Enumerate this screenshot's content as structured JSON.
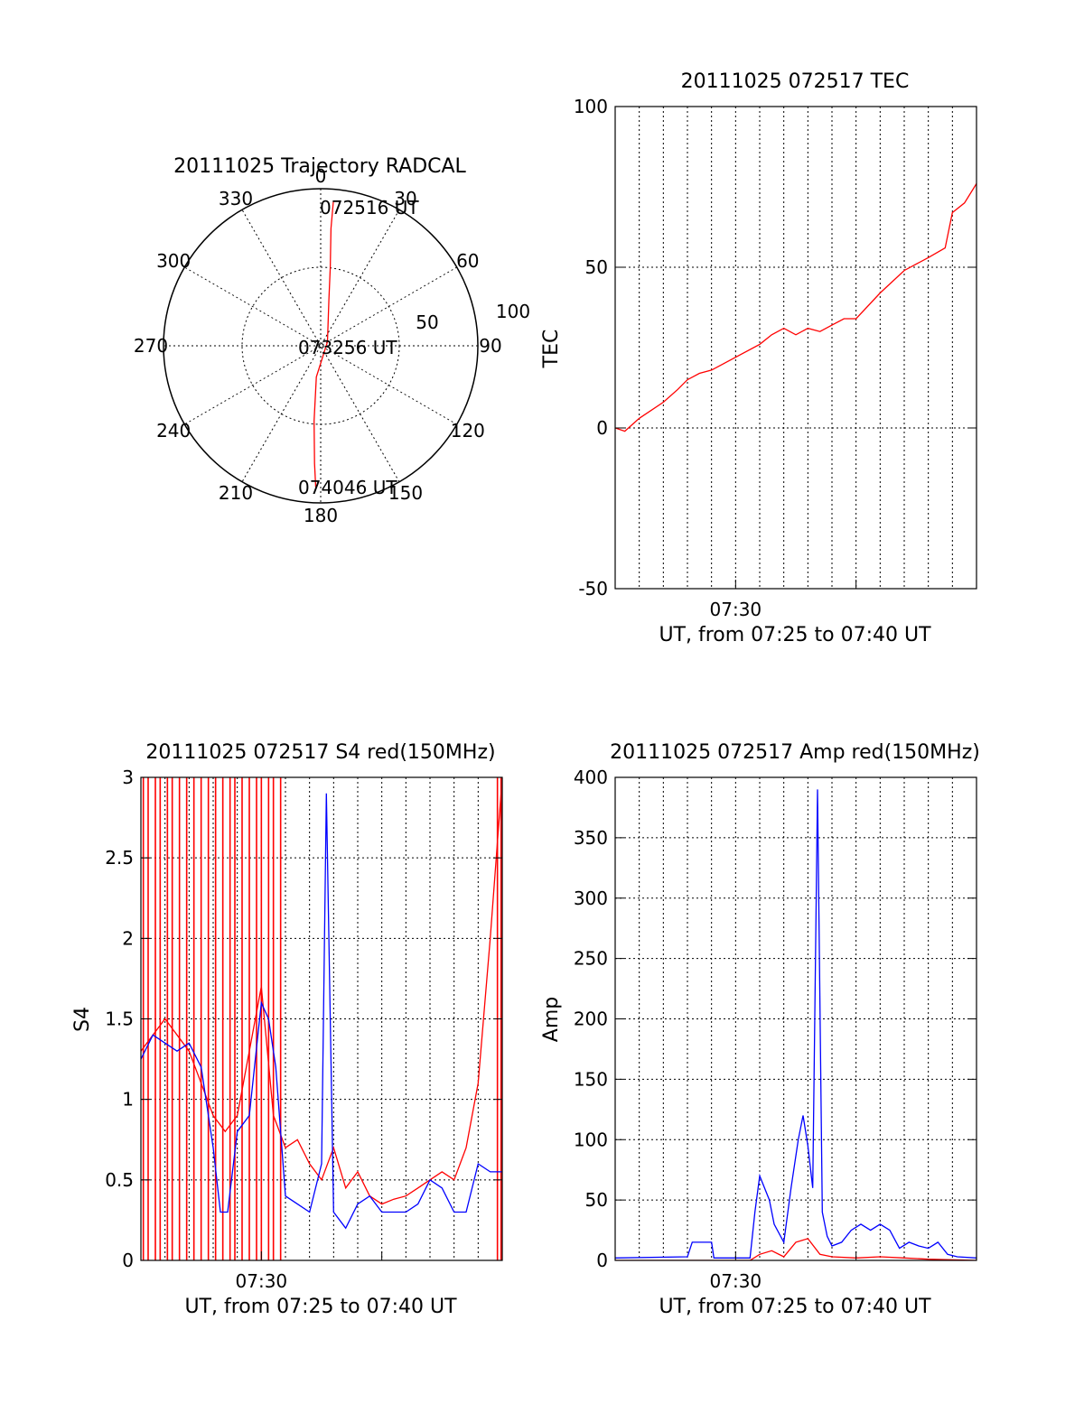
{
  "colors": {
    "red": "#ff0000",
    "blue": "#0000ff",
    "axis": "#000000",
    "background": "#ffffff"
  },
  "chart_data": [
    {
      "id": "trajectory",
      "type": "polar",
      "title": "20111025 Trajectory RADCAL",
      "azimuth_labels": [
        "0",
        "30",
        "60",
        "90",
        "120",
        "150",
        "180",
        "210",
        "240",
        "270",
        "300",
        "330"
      ],
      "radius_labels": [
        "50",
        "100"
      ],
      "rlim": [
        0,
        100
      ],
      "grid": true,
      "series": [
        {
          "color": "red",
          "points": [
            {
              "azimuth": 5,
              "elevation_offset": 92
            },
            {
              "azimuth": 5,
              "elevation_offset": 75
            },
            {
              "azimuth": 7,
              "elevation_offset": 50
            },
            {
              "azimuth": 10,
              "elevation_offset": 30
            },
            {
              "azimuth": 60,
              "elevation_offset": 5
            },
            {
              "azimuth": 188,
              "elevation_offset": 20
            },
            {
              "azimuth": 185,
              "elevation_offset": 48
            },
            {
              "azimuth": 183,
              "elevation_offset": 75
            },
            {
              "azimuth": 182,
              "elevation_offset": 90
            }
          ]
        }
      ],
      "annotations": [
        "072516 UT",
        "073256 UT",
        "074046 UT"
      ]
    },
    {
      "id": "tec",
      "type": "line",
      "title": "20111025 072517 TEC",
      "ylabel": "TEC",
      "xlabel": "UT, from 07:25 to 07:40 UT",
      "xticklabels": [
        "07:30"
      ],
      "xlim_minutes": [
        25,
        40
      ],
      "ylim": [
        -50,
        100
      ],
      "yticks": [
        -50,
        0,
        50,
        100
      ],
      "grid": true,
      "series": [
        {
          "color": "red",
          "x": [
            25.0,
            25.4,
            26.0,
            27.0,
            27.6,
            28.0,
            28.5,
            29.0,
            29.5,
            30.0,
            31.0,
            31.5,
            32.0,
            32.5,
            33.0,
            33.5,
            34.0,
            34.5,
            35.0,
            36.0,
            37.0,
            38.0,
            38.7,
            39.0,
            39.5,
            40.0
          ],
          "y": [
            0,
            -1,
            3,
            8,
            12,
            15,
            17,
            18,
            20,
            22,
            26,
            29,
            31,
            29,
            31,
            30,
            32,
            34,
            34,
            42,
            49,
            53,
            56,
            67,
            70,
            76
          ]
        }
      ]
    },
    {
      "id": "s4",
      "type": "line",
      "title": "20111025 072517 S4 red(150MHz)",
      "ylabel": "S4",
      "xlabel": "UT, from 07:25 to 07:40 UT",
      "xticklabels": [
        "07:30"
      ],
      "xlim_minutes": [
        25,
        40
      ],
      "ylim": [
        0,
        3
      ],
      "yticks": [
        0,
        0.5,
        1,
        1.5,
        2,
        2.5,
        3
      ],
      "grid": true,
      "series": [
        {
          "color": "red",
          "x": [
            25.0,
            25.5,
            26.0,
            26.5,
            27.0,
            27.5,
            28.0,
            28.5,
            29.0,
            29.5,
            30.0,
            30.5,
            31.0,
            31.5,
            32.0,
            32.5,
            33.0,
            33.5,
            34.0,
            34.5,
            35.0,
            35.5,
            36.0,
            36.5,
            37.0,
            37.5,
            38.0,
            38.5,
            39.0,
            39.5,
            40.0
          ],
          "y": [
            1.3,
            1.4,
            1.5,
            1.4,
            1.3,
            1.1,
            0.9,
            0.8,
            0.9,
            1.3,
            1.7,
            0.9,
            0.7,
            0.75,
            0.6,
            0.5,
            0.7,
            0.45,
            0.55,
            0.4,
            0.35,
            0.38,
            0.4,
            0.45,
            0.5,
            0.55,
            0.5,
            0.7,
            1.1,
            2.0,
            3.0
          ],
          "spikes_x": [
            25.1,
            25.3,
            25.6,
            25.8,
            26.1,
            26.3,
            26.6,
            26.9,
            27.2,
            27.5,
            27.8,
            28.1,
            28.4,
            28.7,
            28.9,
            29.2,
            29.5,
            29.8,
            30.0,
            30.3,
            30.5,
            30.8,
            39.8,
            39.95
          ]
        },
        {
          "color": "blue",
          "x": [
            25.0,
            25.5,
            26.0,
            26.5,
            27.0,
            27.5,
            28.0,
            28.3,
            28.6,
            29.0,
            29.5,
            30.0,
            30.3,
            30.6,
            31.0,
            31.5,
            32.0,
            32.5,
            32.7,
            33.0,
            33.5,
            34.0,
            34.5,
            35.0,
            35.5,
            36.0,
            36.5,
            37.0,
            37.5,
            38.0,
            38.5,
            39.0,
            39.5,
            40.0
          ],
          "y": [
            1.25,
            1.4,
            1.35,
            1.3,
            1.35,
            1.2,
            0.7,
            0.3,
            0.3,
            0.8,
            0.9,
            1.6,
            1.5,
            1.2,
            0.4,
            0.35,
            0.3,
            0.6,
            2.9,
            0.3,
            0.2,
            0.35,
            0.4,
            0.3,
            0.3,
            0.3,
            0.35,
            0.5,
            0.45,
            0.3,
            0.3,
            0.6,
            0.55,
            0.55
          ]
        }
      ]
    },
    {
      "id": "amp",
      "type": "line",
      "title": "20111025 072517 Amp red(150MHz)",
      "ylabel": "Amp",
      "xlabel": "UT, from 07:25 to 07:40 UT",
      "xticklabels": [
        "07:30"
      ],
      "xlim_minutes": [
        25,
        40
      ],
      "ylim": [
        0,
        400
      ],
      "yticks": [
        0,
        50,
        100,
        150,
        200,
        250,
        300,
        350,
        400
      ],
      "grid": true,
      "series": [
        {
          "color": "blue",
          "x": [
            25.0,
            28.0,
            28.2,
            29.0,
            29.1,
            30.6,
            30.8,
            31.0,
            31.4,
            31.6,
            32.0,
            32.3,
            32.6,
            32.8,
            33.0,
            33.2,
            33.4,
            33.6,
            33.8,
            34.0,
            34.4,
            34.8,
            35.2,
            35.6,
            36.0,
            36.4,
            36.8,
            37.2,
            37.6,
            38.0,
            38.4,
            38.8,
            39.2,
            40.0
          ],
          "y": [
            2,
            3,
            15,
            15,
            2,
            2,
            40,
            70,
            50,
            30,
            15,
            60,
            100,
            120,
            95,
            60,
            390,
            40,
            20,
            12,
            15,
            25,
            30,
            25,
            30,
            25,
            10,
            15,
            12,
            10,
            15,
            5,
            3,
            2
          ]
        },
        {
          "color": "red",
          "x": [
            25.0,
            30.6,
            31.0,
            31.5,
            32.0,
            32.5,
            33.0,
            33.5,
            34.0,
            35.0,
            36.0,
            37.0,
            38.0,
            40.0
          ],
          "y": [
            0,
            0,
            5,
            8,
            3,
            15,
            18,
            5,
            3,
            2,
            3,
            2,
            1,
            0
          ]
        }
      ]
    }
  ]
}
